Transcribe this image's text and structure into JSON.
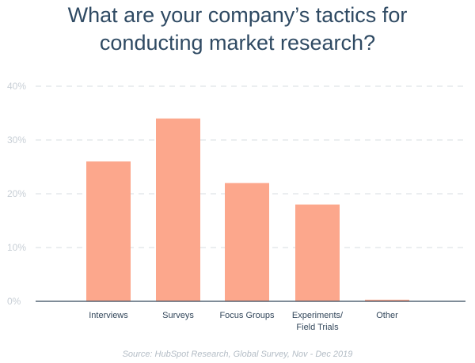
{
  "colors": {
    "bar": "#fca78c",
    "grid": "#dfe3e8",
    "axis": "#33475b",
    "title": "#2f4a63"
  },
  "chart_data": {
    "type": "bar",
    "title": [
      "What are your company’s tactics for",
      "conducting market research?"
    ],
    "source": "Source: HubSpot Research, Global Survey, Nov - Dec 2019",
    "categories": [
      [
        "Interviews"
      ],
      [
        "Surveys"
      ],
      [
        "Focus Groups"
      ],
      [
        "Experiments/",
        "Field Trials"
      ],
      [
        "Other"
      ]
    ],
    "values": [
      26,
      34,
      22,
      18,
      0.3
    ],
    "ylim": [
      0,
      40
    ],
    "yticks": [
      {
        "value": 0,
        "label": "0%"
      },
      {
        "value": 10,
        "label": "10%"
      },
      {
        "value": 20,
        "label": "20%"
      },
      {
        "value": 30,
        "label": "30%"
      },
      {
        "value": 40,
        "label": "40%"
      }
    ],
    "grid": true,
    "legend": "none"
  }
}
